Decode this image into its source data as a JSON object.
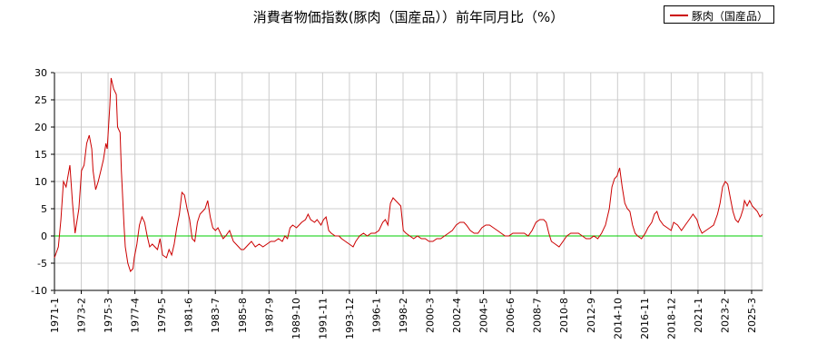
{
  "chart_data": {
    "type": "line",
    "title": "消費者物価指数(豚肉（国産品））前年同月比（%）",
    "ylim": [
      -10,
      30
    ],
    "xlim": [
      1971.0,
      2026.0
    ],
    "yticks": [
      -10,
      -5,
      0,
      5,
      10,
      15,
      20,
      25,
      30
    ],
    "xticks": [
      "1971-1",
      "1973-2",
      "1975-3",
      "1977-4",
      "1979-5",
      "1981-6",
      "1983-7",
      "1985-8",
      "1987-9",
      "1989-10",
      "1991-11",
      "1993-12",
      "1996-1",
      "1998-2",
      "2000-3",
      "2002-4",
      "2004-5",
      "2006-6",
      "2008-7",
      "2010-8",
      "2012-9",
      "2014-10",
      "2016-11",
      "2018-12",
      "2021-1",
      "2023-2",
      "2025-3"
    ],
    "grid": true,
    "legend_position": "top-right",
    "zero_line_color": "#00cc00",
    "series": [
      {
        "name": "豚肉（国産品）",
        "color": "#cc0000",
        "points": [
          [
            1971.0,
            -4.0
          ],
          [
            1971.3,
            -2.0
          ],
          [
            1971.5,
            3.0
          ],
          [
            1971.7,
            10.0
          ],
          [
            1971.9,
            9.0
          ],
          [
            1972.2,
            13.0
          ],
          [
            1972.4,
            6.0
          ],
          [
            1972.6,
            0.5
          ],
          [
            1972.9,
            5.0
          ],
          [
            1973.1,
            12.0
          ],
          [
            1973.3,
            13.0
          ],
          [
            1973.5,
            17.0
          ],
          [
            1973.7,
            18.5
          ],
          [
            1973.9,
            16.0
          ],
          [
            1974.0,
            12.0
          ],
          [
            1974.2,
            8.5
          ],
          [
            1974.4,
            10.0
          ],
          [
            1974.6,
            12.0
          ],
          [
            1974.8,
            14.0
          ],
          [
            1975.0,
            17.0
          ],
          [
            1975.1,
            16.0
          ],
          [
            1975.3,
            24.0
          ],
          [
            1975.4,
            29.0
          ],
          [
            1975.6,
            27.0
          ],
          [
            1975.8,
            26.0
          ],
          [
            1975.9,
            20.0
          ],
          [
            1976.1,
            19.0
          ],
          [
            1976.2,
            12.0
          ],
          [
            1976.4,
            2.0
          ],
          [
            1976.5,
            -2.0
          ],
          [
            1976.7,
            -5.0
          ],
          [
            1976.9,
            -6.5
          ],
          [
            1977.1,
            -6.0
          ],
          [
            1977.2,
            -4.0
          ],
          [
            1977.4,
            -1.5
          ],
          [
            1977.6,
            2.0
          ],
          [
            1977.8,
            3.5
          ],
          [
            1978.0,
            2.5
          ],
          [
            1978.2,
            0.0
          ],
          [
            1978.4,
            -2.0
          ],
          [
            1978.6,
            -1.5
          ],
          [
            1978.8,
            -2.0
          ],
          [
            1979.0,
            -2.5
          ],
          [
            1979.2,
            -0.5
          ],
          [
            1979.4,
            -3.5
          ],
          [
            1979.7,
            -4.0
          ],
          [
            1979.9,
            -2.5
          ],
          [
            1980.1,
            -3.5
          ],
          [
            1980.3,
            -1.5
          ],
          [
            1980.5,
            1.5
          ],
          [
            1980.7,
            4.0
          ],
          [
            1980.9,
            8.0
          ],
          [
            1981.1,
            7.5
          ],
          [
            1981.3,
            5.0
          ],
          [
            1981.5,
            3.0
          ],
          [
            1981.7,
            -0.5
          ],
          [
            1981.9,
            -1.0
          ],
          [
            1982.1,
            2.5
          ],
          [
            1982.3,
            4.0
          ],
          [
            1982.5,
            4.5
          ],
          [
            1982.7,
            5.0
          ],
          [
            1982.9,
            6.5
          ],
          [
            1983.1,
            3.5
          ],
          [
            1983.3,
            1.5
          ],
          [
            1983.5,
            1.0
          ],
          [
            1983.7,
            1.5
          ],
          [
            1983.9,
            0.5
          ],
          [
            1984.1,
            -0.5
          ],
          [
            1984.3,
            0.0
          ],
          [
            1984.6,
            1.0
          ],
          [
            1984.9,
            -1.0
          ],
          [
            1985.1,
            -1.5
          ],
          [
            1985.3,
            -2.0
          ],
          [
            1985.5,
            -2.5
          ],
          [
            1985.7,
            -2.5
          ],
          [
            1985.9,
            -2.0
          ],
          [
            1986.1,
            -1.5
          ],
          [
            1986.3,
            -1.0
          ],
          [
            1986.6,
            -2.0
          ],
          [
            1986.9,
            -1.5
          ],
          [
            1987.2,
            -2.0
          ],
          [
            1987.5,
            -1.5
          ],
          [
            1987.8,
            -1.0
          ],
          [
            1988.1,
            -1.0
          ],
          [
            1988.4,
            -0.5
          ],
          [
            1988.7,
            -1.0
          ],
          [
            1988.9,
            0.0
          ],
          [
            1989.1,
            -0.5
          ],
          [
            1989.3,
            1.5
          ],
          [
            1989.5,
            2.0
          ],
          [
            1989.8,
            1.5
          ],
          [
            1990.0,
            2.0
          ],
          [
            1990.2,
            2.5
          ],
          [
            1990.5,
            3.0
          ],
          [
            1990.7,
            4.0
          ],
          [
            1990.9,
            3.0
          ],
          [
            1991.2,
            2.5
          ],
          [
            1991.4,
            3.0
          ],
          [
            1991.7,
            2.0
          ],
          [
            1991.9,
            3.0
          ],
          [
            1992.1,
            3.5
          ],
          [
            1992.3,
            1.0
          ],
          [
            1992.5,
            0.5
          ],
          [
            1992.8,
            0.0
          ],
          [
            1993.1,
            0.0
          ],
          [
            1993.3,
            -0.5
          ],
          [
            1993.6,
            -1.0
          ],
          [
            1993.9,
            -1.5
          ],
          [
            1994.2,
            -2.0
          ],
          [
            1994.4,
            -1.0
          ],
          [
            1994.7,
            0.0
          ],
          [
            1995.0,
            0.5
          ],
          [
            1995.3,
            0.0
          ],
          [
            1995.6,
            0.5
          ],
          [
            1995.9,
            0.5
          ],
          [
            1996.2,
            1.0
          ],
          [
            1996.5,
            2.5
          ],
          [
            1996.7,
            3.0
          ],
          [
            1996.9,
            2.0
          ],
          [
            1997.1,
            6.0
          ],
          [
            1997.3,
            7.0
          ],
          [
            1997.5,
            6.5
          ],
          [
            1997.7,
            6.0
          ],
          [
            1997.9,
            5.5
          ],
          [
            1998.1,
            1.0
          ],
          [
            1998.3,
            0.5
          ],
          [
            1998.6,
            0.0
          ],
          [
            1998.9,
            -0.5
          ],
          [
            1999.2,
            0.0
          ],
          [
            1999.5,
            -0.5
          ],
          [
            1999.8,
            -0.5
          ],
          [
            2000.1,
            -1.0
          ],
          [
            2000.4,
            -1.0
          ],
          [
            2000.7,
            -0.5
          ],
          [
            2001.0,
            -0.5
          ],
          [
            2001.3,
            0.0
          ],
          [
            2001.6,
            0.5
          ],
          [
            2001.9,
            1.0
          ],
          [
            2002.2,
            2.0
          ],
          [
            2002.5,
            2.5
          ],
          [
            2002.8,
            2.5
          ],
          [
            2003.0,
            2.0
          ],
          [
            2003.3,
            1.0
          ],
          [
            2003.6,
            0.5
          ],
          [
            2003.9,
            0.5
          ],
          [
            2004.2,
            1.5
          ],
          [
            2004.5,
            2.0
          ],
          [
            2004.8,
            2.0
          ],
          [
            2005.1,
            1.5
          ],
          [
            2005.4,
            1.0
          ],
          [
            2005.7,
            0.5
          ],
          [
            2006.0,
            0.0
          ],
          [
            2006.3,
            0.0
          ],
          [
            2006.6,
            0.5
          ],
          [
            2006.9,
            0.5
          ],
          [
            2007.2,
            0.5
          ],
          [
            2007.5,
            0.5
          ],
          [
            2007.8,
            0.0
          ],
          [
            2008.1,
            1.0
          ],
          [
            2008.4,
            2.5
          ],
          [
            2008.7,
            3.0
          ],
          [
            2009.0,
            3.0
          ],
          [
            2009.2,
            2.5
          ],
          [
            2009.4,
            0.5
          ],
          [
            2009.6,
            -1.0
          ],
          [
            2009.9,
            -1.5
          ],
          [
            2010.2,
            -2.0
          ],
          [
            2010.5,
            -1.0
          ],
          [
            2010.8,
            0.0
          ],
          [
            2011.1,
            0.5
          ],
          [
            2011.4,
            0.5
          ],
          [
            2011.7,
            0.5
          ],
          [
            2012.0,
            0.0
          ],
          [
            2012.3,
            -0.5
          ],
          [
            2012.6,
            -0.5
          ],
          [
            2012.9,
            0.0
          ],
          [
            2013.2,
            -0.5
          ],
          [
            2013.5,
            0.5
          ],
          [
            2013.8,
            2.0
          ],
          [
            2014.1,
            5.0
          ],
          [
            2014.3,
            9.0
          ],
          [
            2014.5,
            10.5
          ],
          [
            2014.7,
            11.0
          ],
          [
            2014.9,
            12.5
          ],
          [
            2015.1,
            9.0
          ],
          [
            2015.3,
            6.0
          ],
          [
            2015.5,
            5.0
          ],
          [
            2015.7,
            4.5
          ],
          [
            2015.9,
            2.0
          ],
          [
            2016.1,
            0.5
          ],
          [
            2016.3,
            0.0
          ],
          [
            2016.6,
            -0.5
          ],
          [
            2016.9,
            0.5
          ],
          [
            2017.1,
            1.5
          ],
          [
            2017.4,
            2.5
          ],
          [
            2017.6,
            4.0
          ],
          [
            2017.8,
            4.5
          ],
          [
            2018.0,
            3.0
          ],
          [
            2018.3,
            2.0
          ],
          [
            2018.6,
            1.5
          ],
          [
            2018.9,
            1.0
          ],
          [
            2019.1,
            2.5
          ],
          [
            2019.4,
            2.0
          ],
          [
            2019.7,
            1.0
          ],
          [
            2020.0,
            2.0
          ],
          [
            2020.3,
            3.0
          ],
          [
            2020.6,
            4.0
          ],
          [
            2020.9,
            3.0
          ],
          [
            2021.1,
            1.5
          ],
          [
            2021.3,
            0.5
          ],
          [
            2021.6,
            1.0
          ],
          [
            2021.9,
            1.5
          ],
          [
            2022.2,
            2.0
          ],
          [
            2022.5,
            4.0
          ],
          [
            2022.7,
            6.0
          ],
          [
            2022.9,
            9.0
          ],
          [
            2023.1,
            10.0
          ],
          [
            2023.3,
            9.5
          ],
          [
            2023.5,
            7.0
          ],
          [
            2023.7,
            4.5
          ],
          [
            2023.9,
            3.0
          ],
          [
            2024.1,
            2.5
          ],
          [
            2024.3,
            3.5
          ],
          [
            2024.5,
            5.0
          ],
          [
            2024.6,
            6.5
          ],
          [
            2024.8,
            5.5
          ],
          [
            2025.0,
            6.5
          ],
          [
            2025.2,
            5.5
          ],
          [
            2025.4,
            5.0
          ],
          [
            2025.6,
            4.5
          ],
          [
            2025.8,
            3.5
          ],
          [
            2026.0,
            4.0
          ]
        ]
      }
    ]
  }
}
